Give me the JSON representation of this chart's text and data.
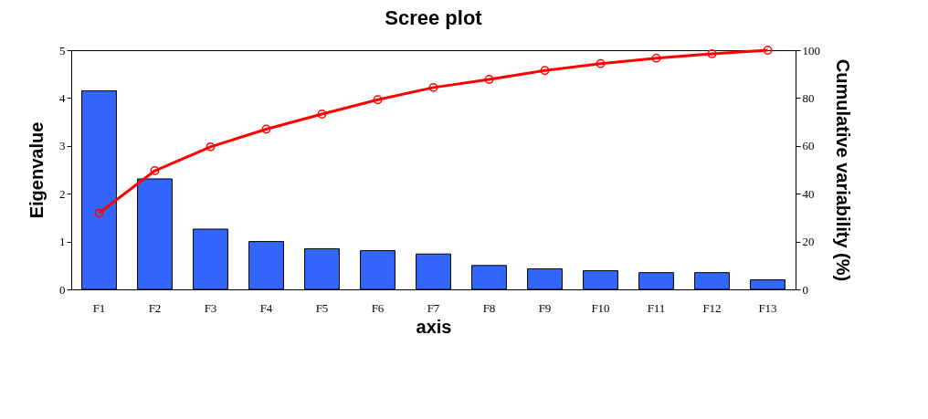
{
  "chart_data": {
    "type": "bar",
    "title": "Scree plot",
    "xlabel": "axis",
    "ylabel": "Eigenvalue",
    "y2label": "Cumulative variability (%)",
    "categories": [
      "F1",
      "F2",
      "F3",
      "F4",
      "F5",
      "F6",
      "F7",
      "F8",
      "F9",
      "F10",
      "F11",
      "F12",
      "F13"
    ],
    "series": [
      {
        "color": "#3366ff",
        "values": [
          4.15,
          2.31,
          1.26,
          1.0,
          0.85,
          0.81,
          0.74,
          0.5,
          0.43,
          0.39,
          0.35,
          0.35,
          0.2
        ]
      },
      {
        "type": "line",
        "axis": "y2",
        "color": "#ff0000",
        "marker": "circle",
        "values": [
          31.9,
          49.6,
          59.6,
          67.0,
          73.3,
          79.3,
          84.4,
          87.8,
          91.5,
          94.4,
          96.7,
          98.5,
          100
        ]
      }
    ],
    "ylim": [
      0,
      5
    ],
    "yticks": [
      0,
      1,
      2,
      3,
      4,
      5
    ],
    "y2lim": [
      0,
      100
    ],
    "y2ticks": [
      0,
      20,
      40,
      60,
      80,
      100
    ]
  }
}
